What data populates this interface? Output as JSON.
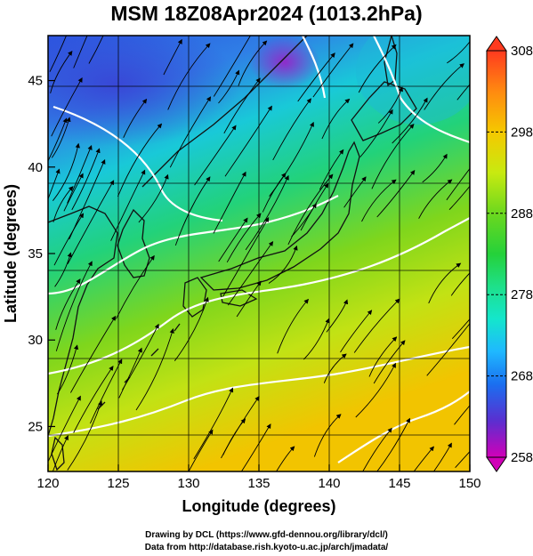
{
  "title": "MSM 18Z08Apr2024 (1013.2hPa)",
  "x_axis": {
    "label": "Longitude (degrees)",
    "ticks": [
      120,
      125,
      130,
      135,
      140,
      145,
      150
    ],
    "range": [
      120,
      150
    ]
  },
  "y_axis": {
    "label": "Latitude  (degrees)",
    "ticks": [
      25,
      30,
      35,
      40,
      45
    ],
    "range": [
      22.4,
      47.6
    ]
  },
  "colorbar": {
    "ticks": [
      308,
      298,
      288,
      278,
      268,
      258
    ],
    "range": [
      258,
      308
    ],
    "colors": [
      "#d100b8",
      "#5a2fd0",
      "#1a6ff0",
      "#1fb8ff",
      "#14e6cc",
      "#1ee08a",
      "#25d13a",
      "#6cd81e",
      "#c8ea10",
      "#f5c800",
      "#ff8a10",
      "#ff3a1f"
    ]
  },
  "credits": {
    "line1": "Drawing by DCL (https://www.gfd-dennou.org/library/dcl/)",
    "line2": "Data from http://database.rish.kyoto-u.ac.jp/arch/jmadata/"
  }
}
